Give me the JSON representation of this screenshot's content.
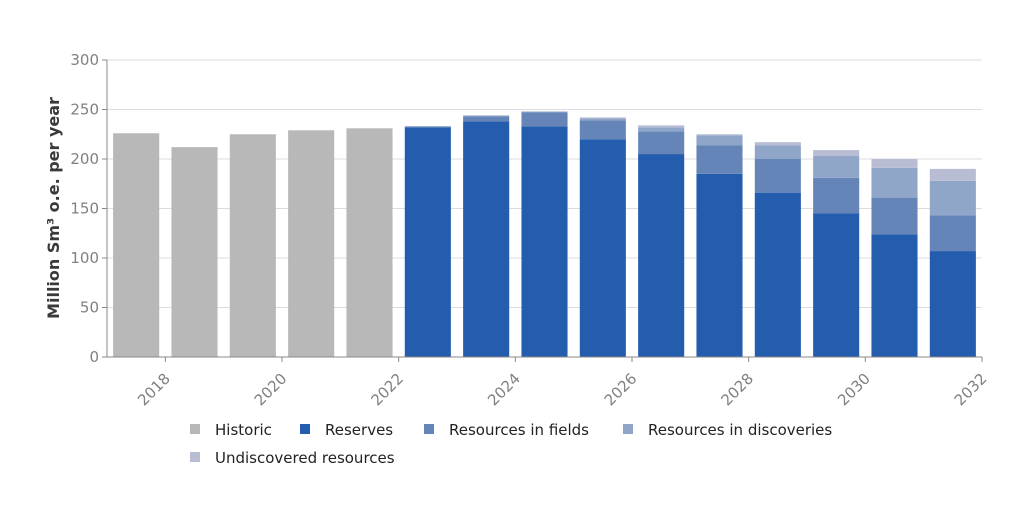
{
  "chart_data": {
    "type": "bar",
    "stacked": true,
    "title": "",
    "xlabel": "",
    "ylabel": "Million Sm³ o.e. per year",
    "ylim": [
      0,
      300
    ],
    "yticks": [
      0,
      50,
      100,
      150,
      200,
      250,
      300
    ],
    "x": [
      2018,
      2019,
      2020,
      2021,
      2022,
      2023,
      2024,
      2025,
      2026,
      2027,
      2028,
      2029,
      2030,
      2031,
      2032
    ],
    "xtick_labels": [
      "2018",
      "2020",
      "2022",
      "2024",
      "2026",
      "2028",
      "2030",
      "2032"
    ],
    "xtick_values": [
      2018,
      2020,
      2022,
      2024,
      2026,
      2028,
      2030,
      2032
    ],
    "grid": true,
    "legend_position": "bottom",
    "series": [
      {
        "name": "Historic",
        "color": "#b8b8b8",
        "values": [
          226,
          212,
          225,
          229,
          231,
          0,
          0,
          0,
          0,
          0,
          0,
          0,
          0,
          0,
          0
        ]
      },
      {
        "name": "Reserves",
        "color": "#255dae",
        "values": [
          0,
          0,
          0,
          0,
          0,
          232,
          238,
          233,
          220,
          205,
          185,
          166,
          145,
          124,
          107
        ]
      },
      {
        "name": "Resources in fields",
        "color": "#6585b9",
        "values": [
          0,
          0,
          0,
          0,
          0,
          1,
          5,
          14,
          19,
          23,
          29,
          34,
          36,
          37,
          36
        ]
      },
      {
        "name": "Resources in discoveries",
        "color": "#8fa6c8",
        "values": [
          0,
          0,
          0,
          0,
          0,
          0,
          1,
          1,
          2,
          4,
          10,
          14,
          22,
          30,
          35
        ]
      },
      {
        "name": "Undiscovered resources",
        "color": "#b9bdd4",
        "values": [
          0,
          0,
          0,
          0,
          0,
          0,
          0,
          0,
          1,
          2,
          1,
          3,
          6,
          9,
          12
        ]
      }
    ]
  }
}
